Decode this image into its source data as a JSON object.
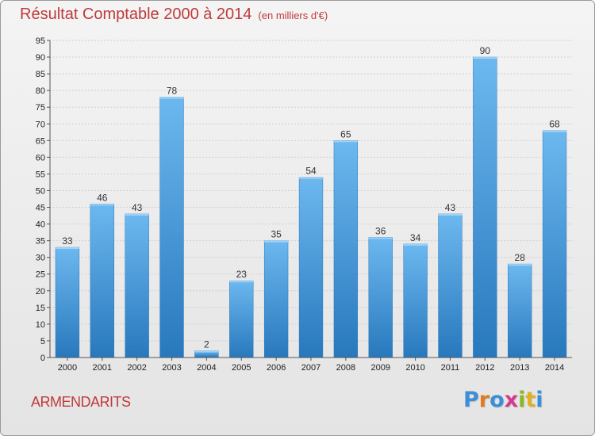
{
  "header": {
    "title": "Résultat Comptable 2000 à 2014",
    "subtitle": "(en milliers d'€)"
  },
  "footer": {
    "commune": "ARMENDARITS",
    "logo_letters": [
      "P",
      "r",
      "o",
      "x",
      "i",
      "t",
      "i"
    ],
    "logo_colors": [
      "#3a8fd8",
      "#e07b22",
      "#3a8fd8",
      "#d63a8c",
      "#8ab822",
      "#e0b020",
      "#3a8fd8"
    ]
  },
  "colors": {
    "bar": "#3f93d6",
    "bar_light": "#6cb8ef",
    "bar_dark": "#2878bd",
    "title": "#c03a3a",
    "grid": "#d0d0d0"
  },
  "chart_data": {
    "type": "bar",
    "title": "Résultat Comptable 2000 à 2014",
    "subtitle": "(en milliers d'€)",
    "categories": [
      "2000",
      "2001",
      "2002",
      "2003",
      "2004",
      "2005",
      "2006",
      "2007",
      "2008",
      "2009",
      "2010",
      "2011",
      "2012",
      "2013",
      "2014"
    ],
    "values": [
      33,
      46,
      43,
      78,
      2,
      23,
      35,
      54,
      65,
      36,
      34,
      43,
      90,
      28,
      68
    ],
    "ylim": [
      0,
      95
    ],
    "yticks": [
      0,
      5,
      10,
      15,
      20,
      25,
      30,
      35,
      40,
      45,
      50,
      55,
      60,
      65,
      70,
      75,
      80,
      85,
      90,
      95
    ],
    "grid": true,
    "xlabel": "",
    "ylabel": ""
  }
}
